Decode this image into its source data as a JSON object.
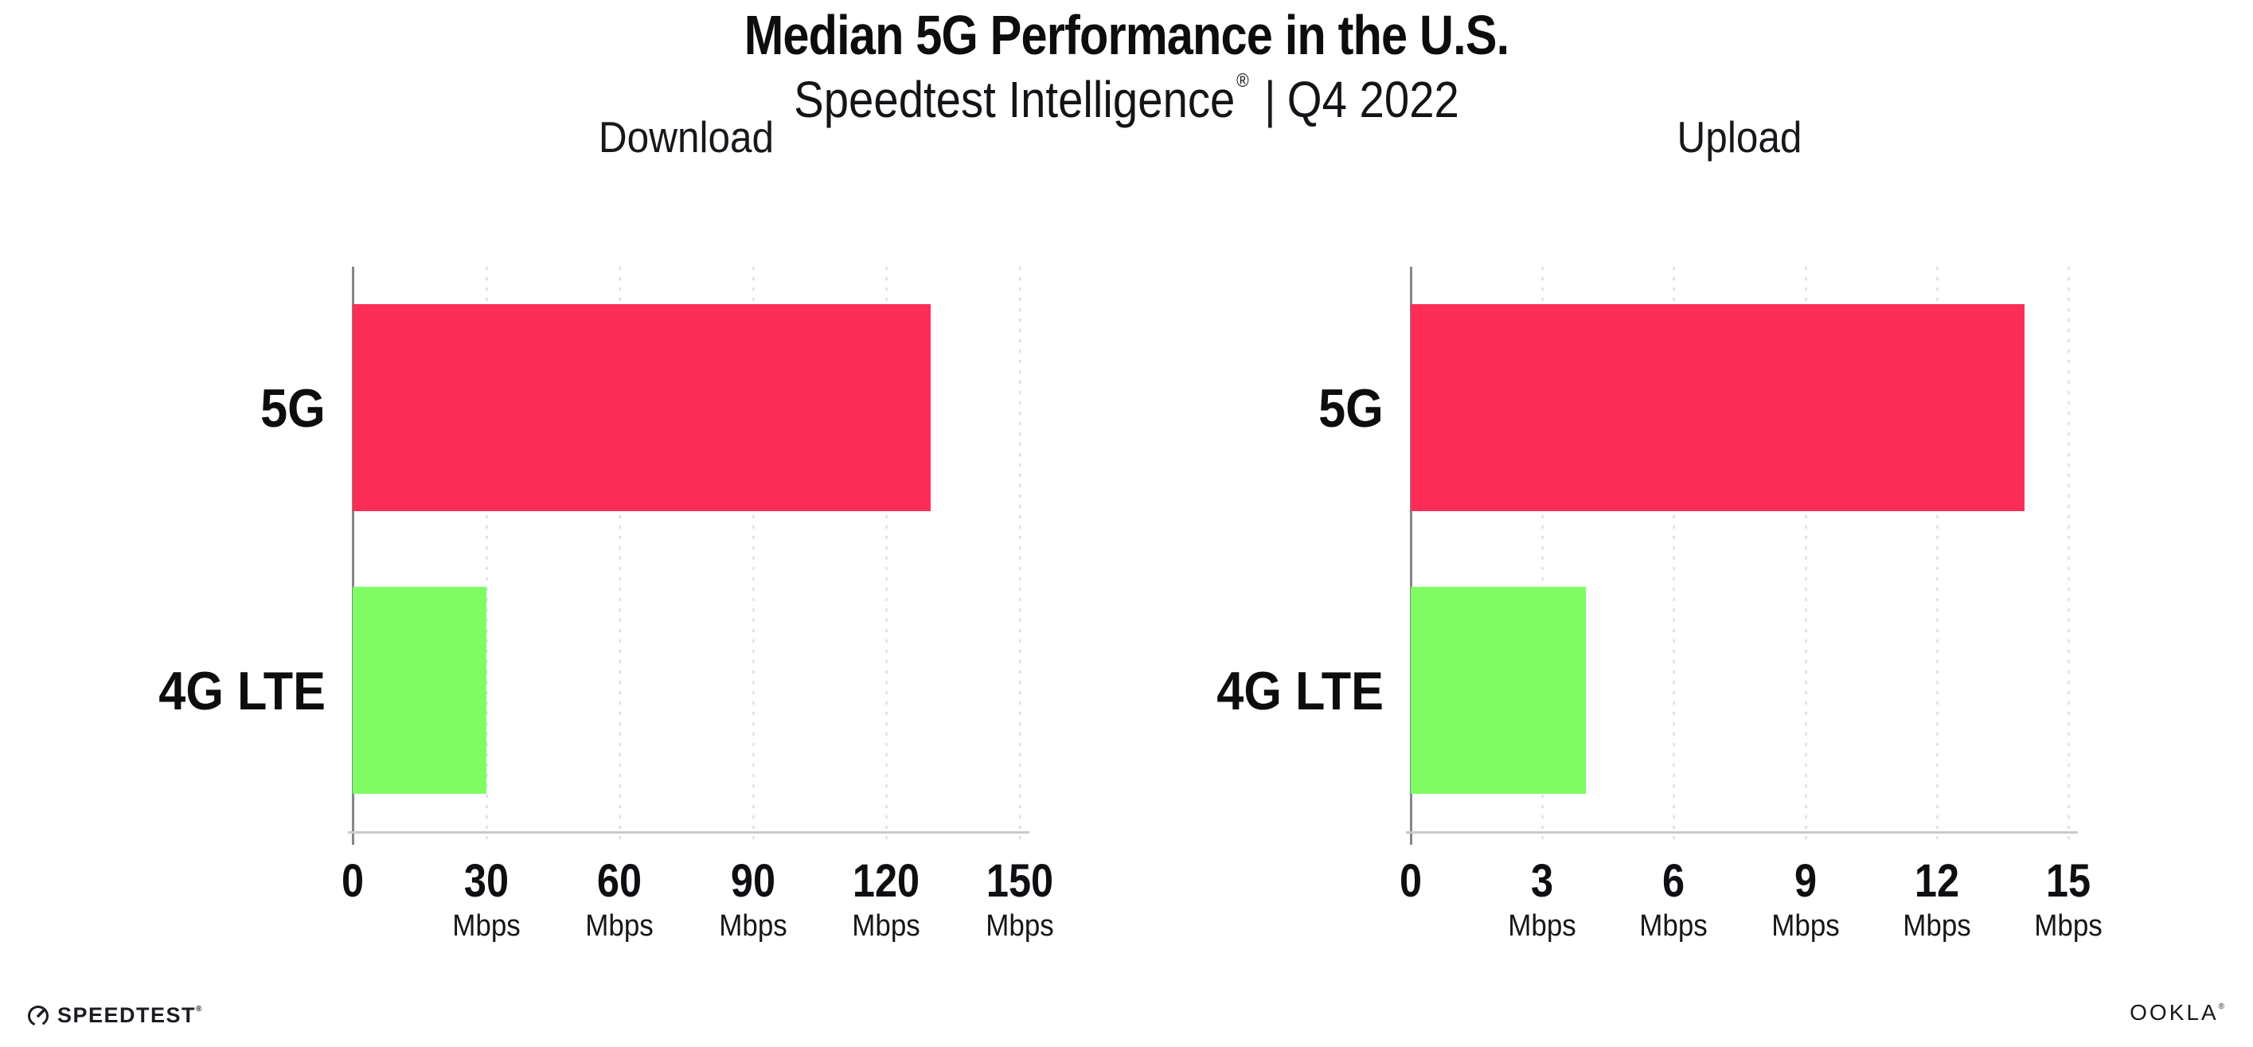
{
  "header": {
    "title": "Median 5G Performance in the U.S.",
    "subtitle_product": "Speedtest Intelligence",
    "subtitle_reg": "®",
    "subtitle_separator": "|",
    "subtitle_period": "Q4 2022"
  },
  "chart_data": [
    {
      "type": "bar",
      "orientation": "horizontal",
      "title": "Download",
      "categories": [
        "5G",
        "4G LTE"
      ],
      "values": [
        130,
        30
      ],
      "unit": "Mbps",
      "xlim": [
        0,
        150
      ],
      "xticks": [
        0,
        30,
        60,
        90,
        120,
        150
      ],
      "bar_colors": [
        "#FC2D57",
        "#7FFC63"
      ],
      "grid": "dotted-vertical",
      "legend": "none"
    },
    {
      "type": "bar",
      "orientation": "horizontal",
      "title": "Upload",
      "categories": [
        "5G",
        "4G LTE"
      ],
      "values": [
        14,
        4
      ],
      "unit": "Mbps",
      "xlim": [
        0,
        15
      ],
      "xticks": [
        0,
        3,
        6,
        9,
        12,
        15
      ],
      "bar_colors": [
        "#FC2D57",
        "#7FFC63"
      ],
      "grid": "dotted-vertical",
      "legend": "none"
    }
  ],
  "footer": {
    "speedtest_logo_text": "SPEEDTEST",
    "speedtest_reg": "®",
    "ookla_logo_text": "OOKLA",
    "ookla_reg": "®"
  },
  "colors": {
    "bar_5g": "#FC2D57",
    "bar_4g_lte": "#7FFC63",
    "y_axis": "#85858b",
    "x_axis_baseline": "#c9c9cd",
    "gridline": "#e2e2ee",
    "text": "#111114",
    "background": "#ffffff"
  }
}
